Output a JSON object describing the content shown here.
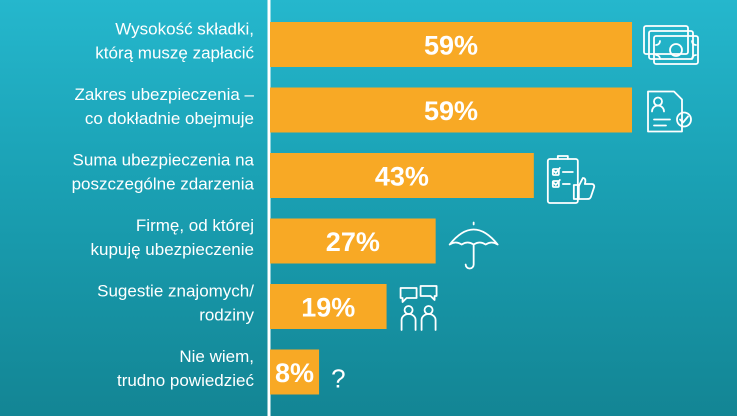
{
  "chart_data": {
    "type": "bar",
    "orientation": "horizontal",
    "categories": [
      [
        "Wysokość składki,",
        "którą muszę zapłacić"
      ],
      [
        "Zakres ubezpieczenia –",
        "co dokładnie obejmuje"
      ],
      [
        "Suma ubezpieczenia na",
        "poszczególne zdarzenia"
      ],
      [
        "Firmę, od której",
        "kupuję ubezpieczenie"
      ],
      [
        "Sugestie znajomych/",
        "rodziny"
      ],
      [
        "Nie wiem,",
        "trudno powiedzieć"
      ]
    ],
    "values": [
      59,
      59,
      43,
      27,
      19,
      8
    ],
    "value_labels": [
      "59%",
      "59%",
      "43%",
      "27%",
      "19%",
      "8%"
    ],
    "icons": [
      "banknotes-icon",
      "insurance-document-icon",
      "checklist-thumbs-up-icon",
      "umbrella-icon",
      "people-chat-icon",
      "question-mark-icon"
    ],
    "icon_text": {
      "question-mark-icon": "?"
    },
    "xlim": [
      0,
      59
    ],
    "colors": {
      "bar": "#f8a925",
      "axis": "#ffffff",
      "text": "#ffffff",
      "background_top": "#25b7cd",
      "background_bottom": "#138594"
    }
  }
}
